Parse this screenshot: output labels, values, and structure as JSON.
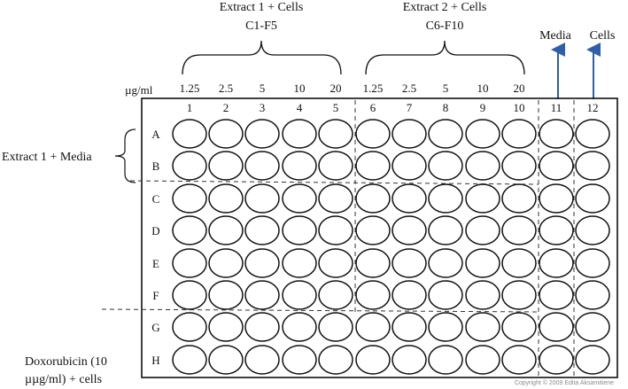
{
  "groups": [
    {
      "title": "Extract 1 + Cells",
      "subtitle": "C1-F5"
    },
    {
      "title": "Extract 2 + Cells",
      "subtitle": "C6-F10"
    }
  ],
  "controls": {
    "media": "Media",
    "cells": "Cells"
  },
  "concentration_unit": "µg/ml",
  "concentrations": [
    "1.25",
    "2.5",
    "5",
    "10",
    "20",
    "1.25",
    "2.5",
    "5",
    "10",
    "20"
  ],
  "columns": [
    "1",
    "2",
    "3",
    "4",
    "5",
    "6",
    "7",
    "8",
    "9",
    "10",
    "11",
    "12"
  ],
  "rows": [
    "A",
    "B",
    "C",
    "D",
    "E",
    "F",
    "G",
    "H"
  ],
  "side_labels": {
    "extract1_media": "Extract 1 + Media",
    "doxorubicin_line1": "Doxorubicin (10",
    "doxorubicin_line2": "µµg/ml) + cells"
  },
  "copyright": "Copyright © 2009 Edita Aksamitiene",
  "colors": {
    "arrow": "#2e5fa8",
    "line": "#111111"
  }
}
